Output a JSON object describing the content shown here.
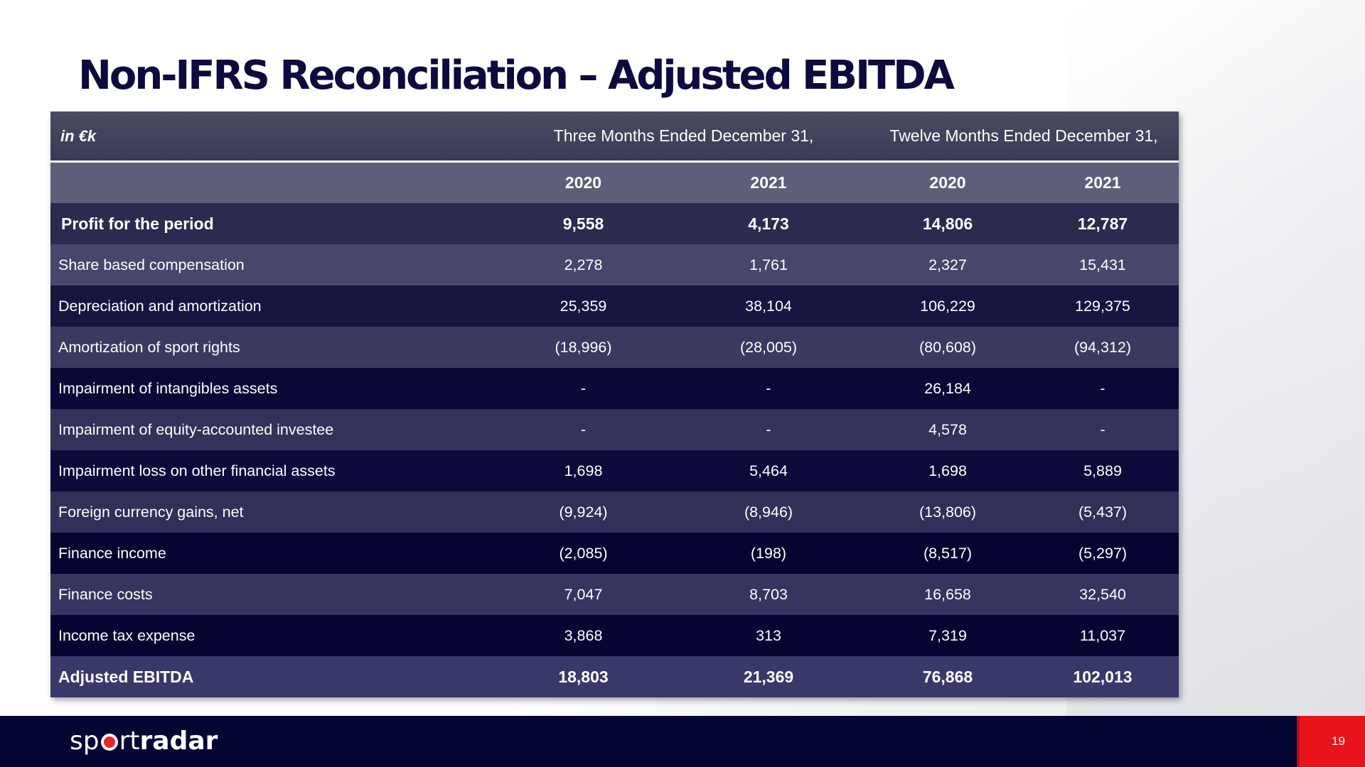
{
  "title": "Non-IFRS Reconciliation – Adjusted EBITDA",
  "table": {
    "unit": "in €k",
    "period_groups": [
      "Three Months Ended December 31,",
      "Twelve Months Ended December 31,"
    ],
    "years": [
      "2020",
      "2021",
      "2020",
      "2021"
    ],
    "rows": [
      {
        "label": "Profit for the period",
        "values": [
          "9,558",
          "4,173",
          "14,806",
          "12,787"
        ],
        "bold": true
      },
      {
        "label": "Share based compensation",
        "values": [
          "2,278",
          "1,761",
          "2,327",
          "15,431"
        ]
      },
      {
        "label": "Depreciation and amortization",
        "values": [
          "25,359",
          "38,104",
          "106,229",
          "129,375"
        ]
      },
      {
        "label": "Amortization of sport rights",
        "values": [
          "(18,996)",
          "(28,005)",
          "(80,608)",
          "(94,312)"
        ]
      },
      {
        "label": "Impairment of intangibles assets",
        "values": [
          "-",
          "-",
          "26,184",
          "-"
        ]
      },
      {
        "label": "Impairment of equity-accounted investee",
        "values": [
          "-",
          "-",
          "4,578",
          "-"
        ]
      },
      {
        "label": "Impairment loss on other financial assets",
        "values": [
          "1,698",
          "5,464",
          "1,698",
          "5,889"
        ]
      },
      {
        "label": "Foreign currency gains, net",
        "values": [
          "(9,924)",
          "(8,946)",
          "(13,806)",
          "(5,437)"
        ]
      },
      {
        "label": "Finance income",
        "values": [
          "(2,085)",
          "(198)",
          "(8,517)",
          "(5,297)"
        ]
      },
      {
        "label": "Finance costs",
        "values": [
          "7,047",
          "8,703",
          "16,658",
          "32,540"
        ]
      },
      {
        "label": "Income tax expense",
        "values": [
          "3,868",
          "313",
          "7,319",
          "11,037"
        ]
      },
      {
        "label": "Adjusted EBITDA",
        "values": [
          "18,803",
          "21,369",
          "76,868",
          "102,013"
        ],
        "bold": true
      }
    ]
  },
  "footer": {
    "logo_light_1": "sp",
    "logo_light_2": "rt",
    "logo_bold": "radar",
    "page_number": "19"
  },
  "colors": {
    "title": "#0c0a3e",
    "footer_bg": "#050533",
    "accent_red": "#e8141b"
  }
}
